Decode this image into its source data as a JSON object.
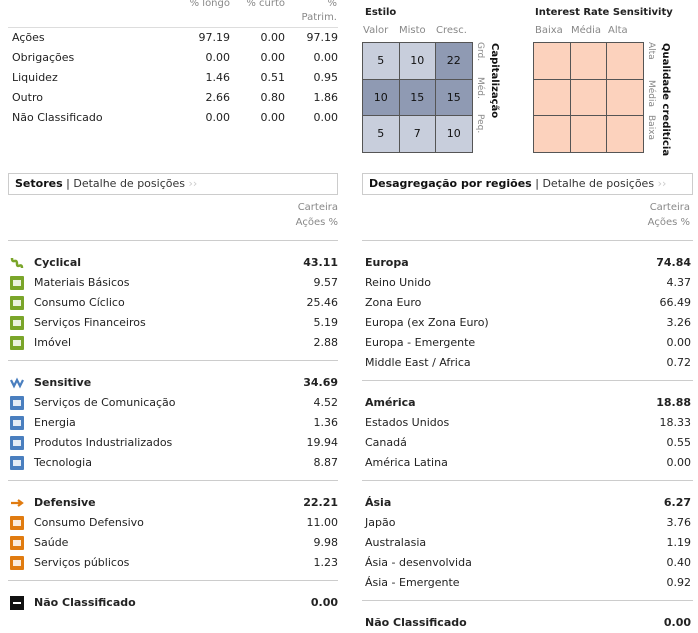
{
  "asset_table": {
    "headers": [
      "% longo",
      "% curto",
      "%",
      "Patrim."
    ],
    "rows": [
      {
        "label": "Ações",
        "long": "97.19",
        "short": "0.00",
        "net": "97.19"
      },
      {
        "label": "Obrigações",
        "long": "0.00",
        "short": "0.00",
        "net": "0.00"
      },
      {
        "label": "Liquidez",
        "long": "1.46",
        "short": "0.51",
        "net": "0.95"
      },
      {
        "label": "Outro",
        "long": "2.66",
        "short": "0.80",
        "net": "1.86"
      },
      {
        "label": "Não Classificado",
        "long": "0.00",
        "short": "0.00",
        "net": "0.00"
      }
    ]
  },
  "style_box": {
    "title": "Estilo",
    "col_labels": [
      "Valor",
      "Misto",
      "Cresc."
    ],
    "row_labels": [
      "Grd.",
      "Méd.",
      "Peq."
    ],
    "side_title": "Capitalização",
    "cells": [
      [
        "5",
        "10",
        "22"
      ],
      [
        "10",
        "15",
        "15"
      ],
      [
        "5",
        "7",
        "10"
      ]
    ],
    "colors": {
      "light": "#c8cedc",
      "mid": "#8f9ab3",
      "dark": "#6e7996"
    }
  },
  "rate_box": {
    "title": "Interest Rate Sensitivity",
    "col_labels": [
      "Baixa",
      "Média",
      "Alta"
    ],
    "row_labels": [
      "Alta",
      "Média",
      "Baixa"
    ],
    "side_title": "Qualidade creditícia",
    "color": "#fcd2bd"
  },
  "sectors": {
    "tab_active": "Setores",
    "tab_sep": "|",
    "tab_link": "Detalhe de posições",
    "col_header_1": "Carteira",
    "col_header_2": "Ações %",
    "groups": [
      {
        "name": "Cyclical",
        "value": "43.11",
        "icon": "cyclical-icon",
        "color": "#7aa52a",
        "items": [
          {
            "name": "Materiais Básicos",
            "value": "9.57",
            "icon": "basic-materials-icon"
          },
          {
            "name": "Consumo Cíclico",
            "value": "25.46",
            "icon": "consumer-cyclical-icon"
          },
          {
            "name": "Serviços Financeiros",
            "value": "5.19",
            "icon": "financial-services-icon"
          },
          {
            "name": "Imóvel",
            "value": "2.88",
            "icon": "real-estate-icon"
          }
        ]
      },
      {
        "name": "Sensitive",
        "value": "34.69",
        "icon": "sensitive-icon",
        "color": "#4a7fbf",
        "items": [
          {
            "name": "Serviços de Comunicação",
            "value": "4.52",
            "icon": "communication-icon"
          },
          {
            "name": "Energia",
            "value": "1.36",
            "icon": "energy-icon"
          },
          {
            "name": "Produtos Industrializados",
            "value": "19.94",
            "icon": "industrials-icon"
          },
          {
            "name": "Tecnologia",
            "value": "8.87",
            "icon": "technology-icon"
          }
        ]
      },
      {
        "name": "Defensive",
        "value": "22.21",
        "icon": "defensive-icon",
        "color": "#e07b10",
        "items": [
          {
            "name": "Consumo Defensivo",
            "value": "11.00",
            "icon": "consumer-defensive-icon"
          },
          {
            "name": "Saúde",
            "value": "9.98",
            "icon": "healthcare-icon"
          },
          {
            "name": "Serviços públicos",
            "value": "1.23",
            "icon": "utilities-icon"
          }
        ]
      }
    ],
    "unclassified": {
      "name": "Não Classificado",
      "value": "0.00",
      "icon": "unclassified-icon"
    }
  },
  "regions": {
    "tab_active": "Desagregação por regiões",
    "tab_sep": "|",
    "tab_link": "Detalhe de posições",
    "col_header_1": "Carteira",
    "col_header_2": "Ações %",
    "groups": [
      {
        "name": "Europa",
        "value": "74.84",
        "items": [
          {
            "name": "Reino Unido",
            "value": "4.37"
          },
          {
            "name": "Zona Euro",
            "value": "66.49"
          },
          {
            "name": "Europa (ex Zona Euro)",
            "value": "3.26"
          },
          {
            "name": "Europa - Emergente",
            "value": "0.00"
          },
          {
            "name": "Middle East / Africa",
            "value": "0.72"
          }
        ]
      },
      {
        "name": "América",
        "value": "18.88",
        "items": [
          {
            "name": "Estados Unidos",
            "value": "18.33"
          },
          {
            "name": "Canadá",
            "value": "0.55"
          },
          {
            "name": "América Latina",
            "value": "0.00"
          }
        ]
      },
      {
        "name": "Ásia",
        "value": "6.27",
        "items": [
          {
            "name": "Japão",
            "value": "3.76"
          },
          {
            "name": "Australasia",
            "value": "1.19"
          },
          {
            "name": "Ásia - desenvolvida",
            "value": "0.40"
          },
          {
            "name": "Ásia - Emergente",
            "value": "0.92"
          }
        ]
      }
    ],
    "unclassified": {
      "name": "Não Classificado",
      "value": "0.00"
    }
  }
}
